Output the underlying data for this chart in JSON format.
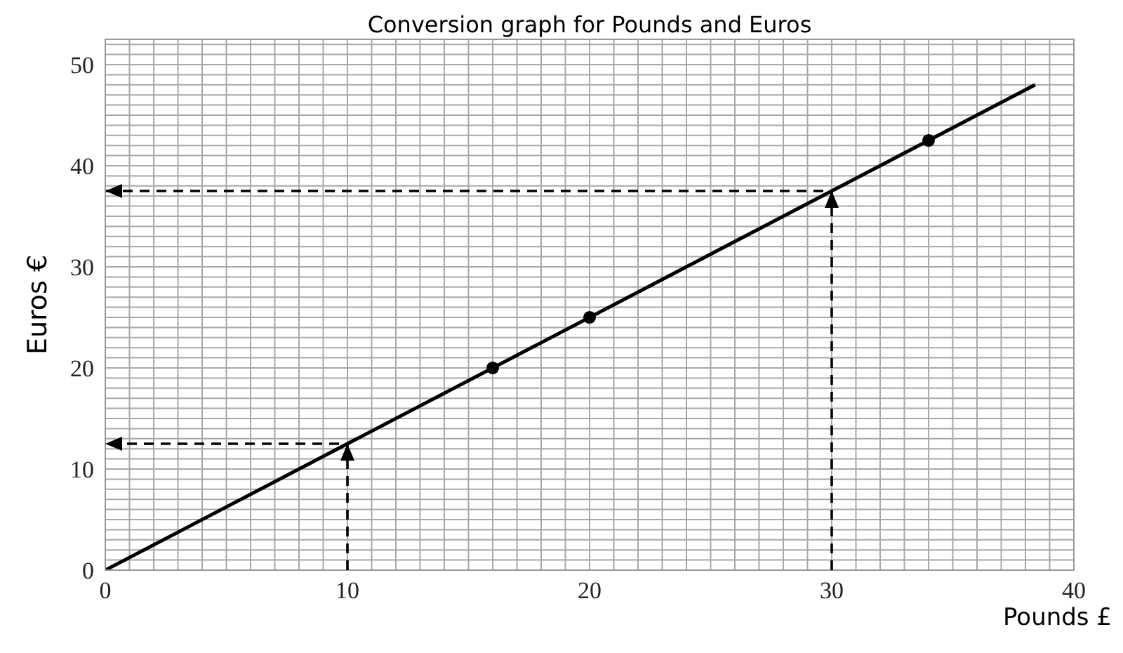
{
  "chart_data": {
    "type": "line",
    "title": "Conversion graph for Pounds and Euros",
    "xlabel": "Pounds £",
    "ylabel": "Euros €",
    "xlim": [
      0,
      40
    ],
    "ylim": [
      0,
      52.5
    ],
    "xticks": [
      0,
      {
        "value": 1,
        "label": null
      },
      {
        "value": 2,
        "label": null
      },
      {
        "value": 3,
        "label": null
      },
      {
        "value": 4,
        "label": null
      },
      {
        "value": 5,
        "label": null
      },
      {
        "value": 6,
        "label": null
      },
      {
        "value": 7,
        "label": null
      },
      {
        "value": 8,
        "label": null
      },
      {
        "value": 9,
        "label": null
      },
      10,
      {
        "value": 11,
        "label": null
      },
      {
        "value": 12,
        "label": null
      },
      {
        "value": 13,
        "label": null
      },
      {
        "value": 14,
        "label": null
      },
      {
        "value": 15,
        "label": null
      },
      {
        "value": 16,
        "label": null
      },
      {
        "value": 17,
        "label": null
      },
      {
        "value": 18,
        "label": null
      },
      {
        "value": 19,
        "label": null
      },
      20,
      {
        "value": 21,
        "label": null
      },
      {
        "value": 22,
        "label": null
      },
      {
        "value": 23,
        "label": null
      },
      {
        "value": 24,
        "label": null
      },
      {
        "value": 25,
        "label": null
      },
      {
        "value": 26,
        "label": null
      },
      {
        "value": 27,
        "label": null
      },
      {
        "value": 28,
        "label": null
      },
      {
        "value": 29,
        "label": null
      },
      30,
      {
        "value": 31,
        "label": null
      },
      {
        "value": 32,
        "label": null
      },
      {
        "value": 33,
        "label": null
      },
      {
        "value": 34,
        "label": null
      },
      {
        "value": 35,
        "label": null
      },
      {
        "value": 36,
        "label": null
      },
      {
        "value": 37,
        "label": null
      },
      {
        "value": 38,
        "label": null
      },
      {
        "value": 39,
        "label": null
      },
      40
    ],
    "yticks": [
      0,
      {
        "value": 1,
        "label": null
      },
      {
        "value": 2,
        "label": null
      },
      {
        "value": 3,
        "label": null
      },
      {
        "value": 4,
        "label": null
      },
      {
        "value": 5,
        "label": null
      },
      {
        "value": 6,
        "label": null
      },
      {
        "value": 7,
        "label": null
      },
      {
        "value": 8,
        "label": null
      },
      {
        "value": 9,
        "label": null
      },
      10,
      {
        "value": 11,
        "label": null
      },
      {
        "value": 12,
        "label": null
      },
      {
        "value": 13,
        "label": null
      },
      {
        "value": 14,
        "label": null
      },
      {
        "value": 15,
        "label": null
      },
      {
        "value": 16,
        "label": null
      },
      {
        "value": 17,
        "label": null
      },
      {
        "value": 18,
        "label": null
      },
      {
        "value": 19,
        "label": null
      },
      20,
      {
        "value": 21,
        "label": null
      },
      {
        "value": 22,
        "label": null
      },
      {
        "value": 23,
        "label": null
      },
      {
        "value": 24,
        "label": null
      },
      {
        "value": 25,
        "label": null
      },
      {
        "value": 26,
        "label": null
      },
      {
        "value": 27,
        "label": null
      },
      {
        "value": 28,
        "label": null
      },
      {
        "value": 29,
        "label": null
      },
      30,
      {
        "value": 31,
        "label": null
      },
      {
        "value": 32,
        "label": null
      },
      {
        "value": 33,
        "label": null
      },
      {
        "value": 34,
        "label": null
      },
      {
        "value": 35,
        "label": null
      },
      {
        "value": 36,
        "label": null
      },
      {
        "value": 37,
        "label": null
      },
      {
        "value": 38,
        "label": null
      },
      {
        "value": 39,
        "label": null
      },
      40,
      {
        "value": 41,
        "label": null
      },
      {
        "value": 42,
        "label": null
      },
      {
        "value": 43,
        "label": null
      },
      {
        "value": 44,
        "label": null
      },
      {
        "value": 45,
        "label": null
      },
      {
        "value": 46,
        "label": null
      },
      {
        "value": 47,
        "label": null
      },
      {
        "value": 48,
        "label": null
      },
      {
        "value": 49,
        "label": null
      },
      50,
      {
        "value": 51,
        "label": null
      },
      {
        "value": 52,
        "label": null
      }
    ],
    "grid": true,
    "series": [
      {
        "color": "#000000",
        "x": [
          0,
          38.4
        ],
        "values": [
          0,
          48
        ],
        "marker": "none",
        "line_style": "solid"
      },
      {
        "type": "scatter",
        "color": "#000000",
        "x": [
          16,
          20,
          34
        ],
        "values": [
          20,
          25,
          42.5
        ],
        "marker": "circle"
      }
    ]
  }
}
